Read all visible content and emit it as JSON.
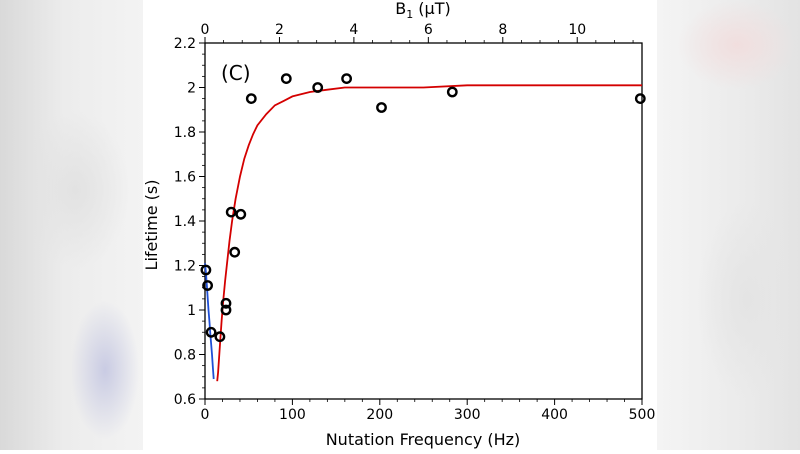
{
  "chart_data": {
    "type": "scatter",
    "panel_label": "(C)",
    "xlabel": "Nutation Frequency (Hz)",
    "ylabel": "Lifetime (s)",
    "top_xlabel": "B",
    "top_xlabel_sub": "1",
    "top_xlabel_unit": " (μT)",
    "xlim": [
      0,
      500
    ],
    "ylim": [
      0.6,
      2.2
    ],
    "x_ticks": [
      0,
      100,
      200,
      300,
      400,
      500
    ],
    "y_ticks": [
      0.6,
      0.8,
      1,
      1.2,
      1.4,
      1.6,
      1.8,
      2,
      2.2
    ],
    "y_tick_labels": [
      "0.6",
      "0.8",
      "1",
      "1.2",
      "1.4",
      "1.6",
      "1.8",
      "2",
      "2.2"
    ],
    "top_xlim": [
      0,
      11.74
    ],
    "top_x_ticks": [
      0,
      2,
      4,
      6,
      8,
      10
    ],
    "series": [
      {
        "marker": "open-circle",
        "color": "#000000",
        "x": [
          1,
          3,
          7,
          17,
          24,
          24,
          30,
          34,
          41,
          53,
          93,
          129,
          162,
          202,
          283,
          498
        ],
        "y": [
          1.18,
          1.11,
          0.9,
          0.88,
          1.03,
          1.0,
          1.44,
          1.26,
          1.43,
          1.95,
          2.04,
          2.0,
          2.04,
          1.91,
          1.98,
          1.95
        ]
      },
      {
        "style": "line",
        "color": "#d40000",
        "x": [
          14,
          15,
          17,
          19,
          21,
          23,
          25,
          28,
          31,
          35,
          40,
          45,
          50,
          55,
          60,
          70,
          80,
          90,
          100,
          120,
          140,
          160,
          180,
          200,
          250,
          300,
          350,
          400,
          450,
          500
        ],
        "y": [
          0.68,
          0.72,
          0.84,
          0.95,
          1.05,
          1.13,
          1.2,
          1.31,
          1.4,
          1.5,
          1.6,
          1.68,
          1.74,
          1.79,
          1.83,
          1.88,
          1.92,
          1.94,
          1.96,
          1.98,
          1.99,
          2.0,
          2.0,
          2.0,
          2.0,
          2.01,
          2.01,
          2.01,
          2.01,
          2.01
        ]
      },
      {
        "style": "line",
        "color": "#1f4fd6",
        "x": [
          0,
          1,
          2,
          3,
          4,
          5,
          6,
          7,
          8,
          9,
          10
        ],
        "y": [
          1.21,
          1.17,
          1.12,
          1.06,
          1.0,
          0.95,
          0.9,
          0.85,
          0.8,
          0.74,
          0.69
        ]
      }
    ]
  }
}
